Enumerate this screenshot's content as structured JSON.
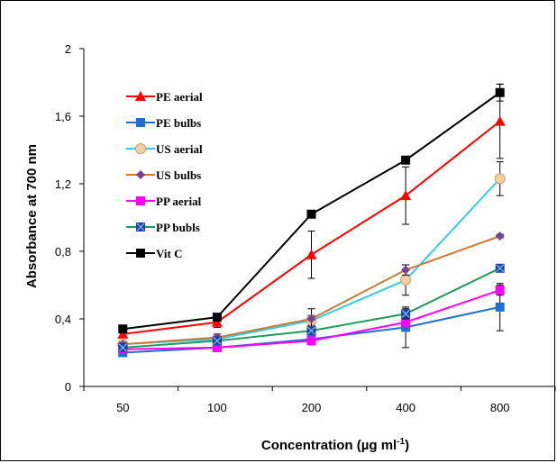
{
  "chart_data": {
    "type": "line",
    "title": "",
    "xlabel": "Concentration (µg ml",
    "xlabel_sup": "-1",
    "xlabel_close": ")",
    "ylabel": "Absorbance at 700 nm",
    "categories": [
      "50",
      "100",
      "200",
      "400",
      "800"
    ],
    "ylim": [
      0,
      2
    ],
    "yticks": [
      "0",
      "0,4",
      "0,8",
      "1,2",
      "1,6",
      "2"
    ],
    "ytick_values": [
      0,
      0.4,
      0.8,
      1.2,
      1.6,
      2
    ],
    "grid": false,
    "legend_position": "top-left",
    "series": [
      {
        "name": "PE aerial",
        "color": "#ff0000",
        "marker": "triangle",
        "values": [
          0.31,
          0.38,
          0.78,
          1.13,
          1.57
        ],
        "errors": [
          0.02,
          0.03,
          0.14,
          0.17,
          0.22
        ]
      },
      {
        "name": "PE bulbs",
        "color": "#1f6fd1",
        "marker": "square",
        "values": [
          0.2,
          0.23,
          0.28,
          0.35,
          0.47
        ],
        "errors": [
          0.02,
          0.02,
          0.03,
          0.12,
          0.14
        ]
      },
      {
        "name": "US aerial",
        "color": "#33ccee",
        "marker": "circle",
        "values": [
          0.25,
          0.28,
          0.39,
          0.63,
          1.23
        ],
        "errors": [
          0.02,
          0.02,
          0.03,
          0.09,
          0.1
        ]
      },
      {
        "name": "US bulbs",
        "color": "#cc7a33",
        "marker": "diamond",
        "values": [
          0.25,
          0.29,
          0.4,
          0.69,
          0.89
        ],
        "errors": [
          0.01,
          0.02,
          0.06,
          0.03,
          0.01
        ]
      },
      {
        "name": "PP aerial",
        "color": "#ff00ff",
        "marker": "square",
        "values": [
          0.22,
          0.23,
          0.27,
          0.38,
          0.57
        ],
        "errors": [
          0.01,
          0.01,
          0.02,
          0.02,
          0.03
        ]
      },
      {
        "name": "PP bubls",
        "color": "#1b9e5a",
        "marker": "square-x",
        "values": [
          0.23,
          0.27,
          0.33,
          0.43,
          0.7
        ],
        "errors": [
          0.01,
          0.02,
          0.02,
          0.03,
          0.01
        ]
      },
      {
        "name": "Vit C",
        "color": "#000000",
        "marker": "square",
        "values": [
          0.34,
          0.41,
          1.02,
          1.34,
          1.74
        ],
        "errors": [
          0.01,
          0.01,
          0.01,
          0.01,
          0.05
        ]
      }
    ]
  }
}
